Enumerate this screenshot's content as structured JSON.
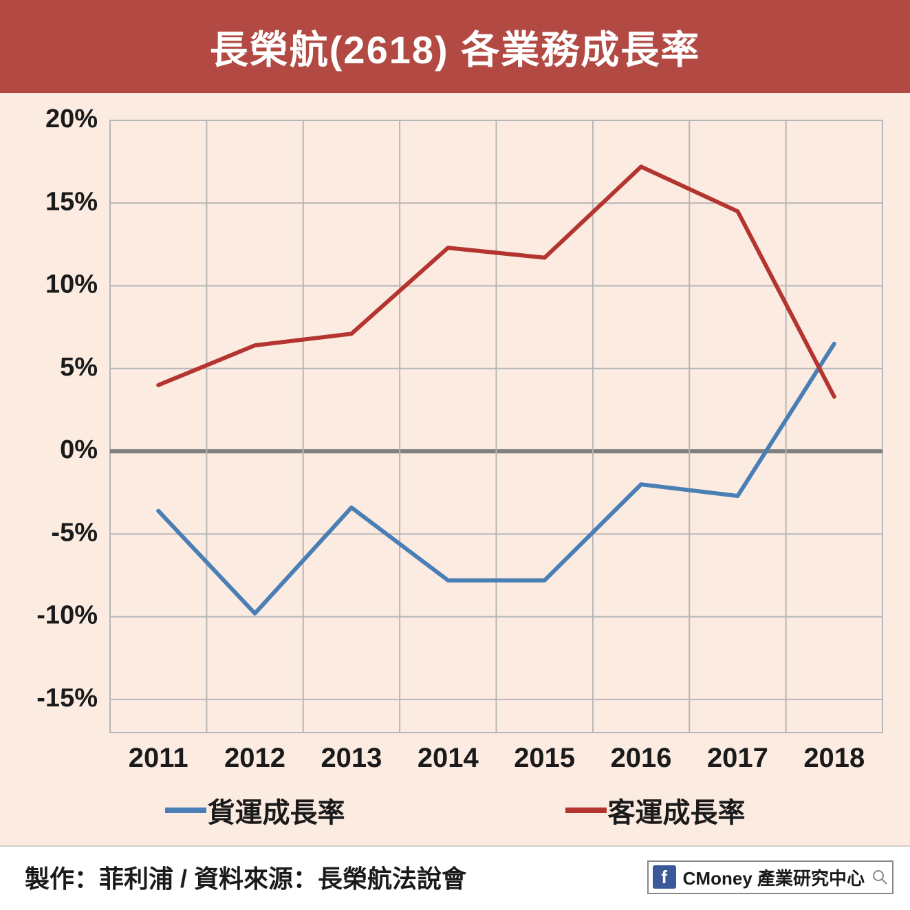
{
  "title": "長榮航(2618) 各業務成長率",
  "chart": {
    "type": "line",
    "background_color": "#fcebe1",
    "border_color": "#b6b6b6",
    "grid_color": "#b6b6b6",
    "zero_line_color": "#808080",
    "x_categories": [
      "2011",
      "2012",
      "2013",
      "2014",
      "2015",
      "2016",
      "2017",
      "2018"
    ],
    "y_ticks": [
      20,
      15,
      10,
      5,
      0,
      -5,
      -10,
      -15
    ],
    "y_tick_labels": [
      "20%",
      "15%",
      "10%",
      "5%",
      "0%",
      "-5%",
      "-10%",
      "-15%"
    ],
    "ylim": [
      -17,
      20
    ],
    "series": [
      {
        "name": "貨運成長率",
        "color": "#4a7fb5",
        "values": [
          -3.6,
          -9.8,
          -3.4,
          -7.8,
          -7.8,
          -2.0,
          -2.7,
          6.5
        ]
      },
      {
        "name": "客運成長率",
        "color": "#b43530",
        "values": [
          4.0,
          6.4,
          7.1,
          12.3,
          11.7,
          17.2,
          14.5,
          3.3
        ]
      }
    ],
    "x_label_fontsize": 40,
    "y_label_fontsize": 38,
    "line_width": 6
  },
  "legend": {
    "items": [
      {
        "label": "貨運成長率",
        "color": "#4a7fb5"
      },
      {
        "label": "客運成長率",
        "color": "#b43530"
      }
    ]
  },
  "footer": {
    "credit": "製作：菲利浦 / 資料來源：長榮航法說會",
    "badge": {
      "fb": "f",
      "text": "CMoney 產業研究中心"
    }
  }
}
